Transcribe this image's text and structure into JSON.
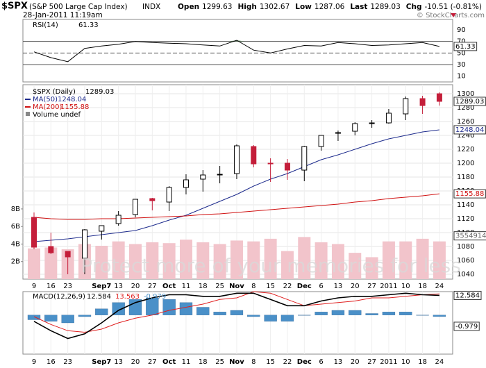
{
  "header": {
    "symbol": "$SPX",
    "name": "(S&P 500 Large Cap Index)",
    "exchange": "INDX",
    "datetime": "28-Jan-2011 11:19am",
    "source": "© StockCharts.com",
    "quote": [
      {
        "label": "Open",
        "value": 1299.63
      },
      {
        "label": "High",
        "value": 1302.67
      },
      {
        "label": "Low",
        "value": 1287.06
      },
      {
        "label": "Last",
        "value": 1289.03
      },
      {
        "label": "Chg",
        "value": "-10.51 (-0.81%)"
      }
    ]
  },
  "watermark": "Protect more of your memories for less",
  "chart_data": [
    {
      "type": "rsi",
      "title": "RSI(14)",
      "color": "#000000",
      "fill_color": "#4a7a4a",
      "values": [
        52,
        42,
        35,
        58,
        62,
        65,
        70,
        68,
        67,
        66,
        64,
        62,
        72,
        55,
        50,
        57,
        63,
        62,
        68,
        66,
        63,
        64,
        66,
        68,
        61.33
      ],
      "ylim": [
        0,
        108
      ],
      "yticks": [
        90,
        70,
        50,
        30,
        10
      ],
      "reference_lines": [
        70,
        50,
        30
      ]
    },
    {
      "type": "candlestick",
      "title": "$SPX (Daily)",
      "categories": [
        "9",
        "16",
        "23",
        null,
        "Sep7",
        "13",
        "20",
        "27",
        "Oct",
        "11",
        "18",
        "25",
        "Nov",
        "8",
        "15",
        "22",
        "Dec",
        "6",
        "13",
        "20",
        "27",
        "2011",
        "10",
        "18",
        "24"
      ],
      "open": [
        1122,
        1080,
        1073,
        1063,
        1102,
        1113,
        1126,
        1149,
        1144,
        1165,
        1177,
        1184,
        1185,
        1224,
        1200,
        1200,
        1190,
        1224,
        1243,
        1246,
        1258,
        1258,
        1271,
        1293,
        1300
      ],
      "high": [
        1129,
        1100,
        1073,
        1105,
        1110,
        1131,
        1148,
        1150,
        1167,
        1184,
        1190,
        1196,
        1227,
        1226,
        1207,
        1206,
        1225,
        1240,
        1247,
        1259,
        1262,
        1278,
        1296,
        1297,
        1302
      ],
      "low": [
        1076,
        1069,
        1040,
        1040,
        1090,
        1110,
        1122,
        1132,
        1131,
        1155,
        1159,
        1171,
        1177,
        1194,
        1173,
        1176,
        1174,
        1218,
        1232,
        1240,
        1251,
        1257,
        1262,
        1271,
        1283
      ],
      "close": [
        1079,
        1071,
        1065,
        1104,
        1110,
        1125,
        1148,
        1146,
        1165,
        1176,
        1183,
        1184,
        1225,
        1199,
        1199,
        1190,
        1224,
        1240,
        1244,
        1257,
        1258,
        1272,
        1293,
        1283,
        1289.03
      ],
      "up_color": "#000000",
      "down_color": "#c41e3a",
      "ylim": [
        1033,
        1313
      ],
      "yticks": [
        1300,
        1280,
        1260,
        1240,
        1220,
        1200,
        1180,
        1160,
        1140,
        1120,
        1100,
        1080,
        1060,
        1040
      ],
      "grid": true,
      "overlays": [
        {
          "name": "MA(50)",
          "color": "#1c2a8c",
          "values": [
            1087,
            1089,
            1091,
            1094,
            1097,
            1100,
            1103,
            1110,
            1118,
            1125,
            1135,
            1145,
            1155,
            1167,
            1177,
            1185,
            1195,
            1205,
            1212,
            1220,
            1228,
            1235,
            1240,
            1245,
            1248.04
          ]
        },
        {
          "name": "MA(200)",
          "color": "#d01010",
          "values": [
            1122,
            1120,
            1119,
            1119,
            1120,
            1120,
            1121,
            1122,
            1123,
            1124,
            1126,
            1127,
            1129,
            1131,
            1133,
            1135,
            1137,
            1139,
            1141,
            1144,
            1146,
            1149,
            1151,
            1153,
            1155.88
          ]
        }
      ],
      "volume": {
        "name": "Volume undef",
        "color": "#f2c4cb",
        "last_label": "3554914",
        "values": [
          3.5,
          3.6,
          3.4,
          4.0,
          3.8,
          4.3,
          4.0,
          4.2,
          4.1,
          4.5,
          4.2,
          4.0,
          4.4,
          4.3,
          4.6,
          3.2,
          4.8,
          4.2,
          4.0,
          3.0,
          2.5,
          4.3,
          4.3,
          4.6,
          4.3
        ],
        "ylim": [
          0,
          22.16
        ],
        "yticks": [
          {
            "value": 2,
            "label": "2B"
          },
          {
            "value": 4,
            "label": "4B"
          },
          {
            "value": 6,
            "label": "6B"
          },
          {
            "value": 8,
            "label": "8B"
          }
        ]
      }
    },
    {
      "type": "macd",
      "title": "MACD(12,26,9)",
      "categories": [
        "9",
        "16",
        "23",
        null,
        "Sep7",
        "13",
        "20",
        "27",
        "Oct",
        "11",
        "18",
        "25",
        "Nov",
        "8",
        "15",
        "22",
        "Dec",
        "6",
        "13",
        "20",
        "27",
        "2011",
        "10",
        "18",
        "24"
      ],
      "series": [
        {
          "color": "#000000",
          "values": [
            -4,
            -10,
            -15,
            -12,
            -5,
            3,
            8,
            11,
            13,
            13,
            12,
            12,
            14,
            14,
            10,
            6,
            6,
            9,
            11,
            12,
            12,
            13,
            14,
            13,
            12.584
          ]
        },
        {
          "color": "#e02020",
          "values": [
            -1,
            -6,
            -10,
            -11,
            -9,
            -5,
            -2,
            0,
            3,
            5,
            7,
            10,
            11,
            15,
            14,
            10,
            6,
            7,
            8,
            9,
            11,
            11,
            12,
            13,
            13.563
          ]
        },
        {
          "color": "#4a90c8",
          "values": [
            -3,
            -4,
            -5,
            -1,
            4,
            8,
            10,
            11,
            10,
            8,
            5,
            2,
            3,
            -1,
            -4,
            -4,
            0,
            2,
            3,
            3,
            1,
            2,
            2,
            0,
            -0.979
          ]
        }
      ],
      "ylim": [
        -25,
        15
      ]
    }
  ]
}
